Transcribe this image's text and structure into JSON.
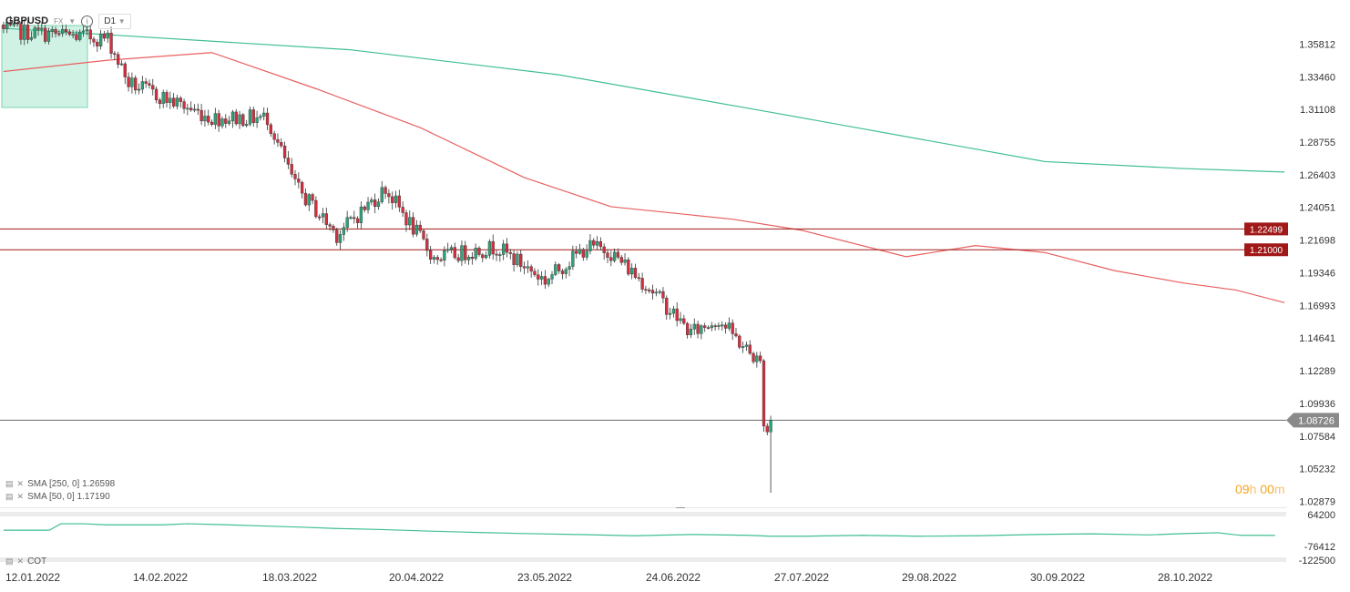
{
  "header": {
    "symbol": "GBPUSD",
    "market": "FX",
    "timeframe": "D1"
  },
  "legend": {
    "sma250": "SMA [250,  0]  1.26598",
    "sma50": "SMA [50,  0]  1.17190",
    "cot": "COT"
  },
  "countdown": {
    "hours": "09",
    "h": "h",
    "minutes": "00",
    "m": "m"
  },
  "colors": {
    "up": "#2fa37a",
    "down": "#d32f3f",
    "sma250": "#3fbf8f",
    "sma50": "#e86060",
    "level": "#a01818",
    "price_line": "#6e6e6e",
    "highlight": "#bfeedb"
  },
  "chart_data": {
    "type": "candlestick",
    "symbol": "GBPUSD",
    "timeframe": "D1",
    "x_tick_labels": [
      "12.01.2022",
      "14.02.2022",
      "18.03.2022",
      "20.04.2022",
      "23.05.2022",
      "24.06.2022",
      "27.07.2022",
      "29.08.2022",
      "30.09.2022",
      "28.10.2022"
    ],
    "y_tick_labels": [
      "1.35812",
      "1.33460",
      "1.31108",
      "1.28755",
      "1.26403",
      "1.24051",
      "1.21698",
      "1.19346",
      "1.16993",
      "1.14641",
      "1.12289",
      "1.09936",
      "1.07584",
      "1.05232",
      "1.02879"
    ],
    "ylim": [
      1.0252,
      1.3715
    ],
    "current_price": 1.08726,
    "current_price_label": "1.08726",
    "levels": [
      {
        "value": 1.22499,
        "label": "1.22499"
      },
      {
        "value": 1.21,
        "label": "1.21000"
      }
    ],
    "key_prices": [
      {
        "bar": 0,
        "close": 1.368
      },
      {
        "bar": 30,
        "close": 1.362
      },
      {
        "bar": 36,
        "close": 1.33
      },
      {
        "bar": 60,
        "close": 1.305
      },
      {
        "bar": 76,
        "close": 1.305
      },
      {
        "bar": 84,
        "close": 1.256
      },
      {
        "bar": 96,
        "close": 1.221
      },
      {
        "bar": 110,
        "close": 1.254
      },
      {
        "bar": 124,
        "close": 1.204
      },
      {
        "bar": 142,
        "close": 1.212
      },
      {
        "bar": 156,
        "close": 1.188
      },
      {
        "bar": 168,
        "close": 1.212
      },
      {
        "bar": 174,
        "close": 1.21
      },
      {
        "bar": 186,
        "close": 1.183
      },
      {
        "bar": 198,
        "close": 1.15
      },
      {
        "bar": 206,
        "close": 1.16
      },
      {
        "bar": 214,
        "close": 1.138
      },
      {
        "bar": 218,
        "close": 1.128
      },
      {
        "bar": 219,
        "close": 1.083
      },
      {
        "bar": 220,
        "close": 1.0788
      },
      {
        "bar": 221,
        "close": 1.08726,
        "low": 1.035
      }
    ],
    "series": [
      {
        "name": "SMA [250,  0]",
        "last": 1.26598,
        "points": [
          [
            0,
            1.3695
          ],
          [
            100,
            1.354
          ],
          [
            160,
            1.336
          ],
          [
            220,
            1.3095
          ],
          [
            300,
            1.2735
          ],
          [
            340,
            1.2685
          ],
          [
            369,
            1.26598
          ]
        ]
      },
      {
        "name": "SMA [50,  0]",
        "last": 1.1719,
        "points": [
          [
            0,
            1.3384
          ],
          [
            30,
            1.3465
          ],
          [
            60,
            1.352
          ],
          [
            90,
            1.326
          ],
          [
            120,
            1.298
          ],
          [
            150,
            1.262
          ],
          [
            175,
            1.241
          ],
          [
            210,
            1.232
          ],
          [
            230,
            1.224
          ],
          [
            260,
            1.205
          ],
          [
            280,
            1.213
          ],
          [
            300,
            1.208
          ],
          [
            320,
            1.195
          ],
          [
            340,
            1.186
          ],
          [
            355,
            1.181
          ],
          [
            369,
            1.1719
          ]
        ]
      }
    ],
    "cot": {
      "y_tick_labels": [
        "64200",
        "-76412",
        "-122500"
      ],
      "ylim": [
        -122500,
        64200
      ],
      "points": [
        [
          0,
          0
        ],
        [
          8,
          0
        ],
        [
          10,
          30000
        ],
        [
          14,
          30000
        ],
        [
          18,
          25000
        ],
        [
          28,
          25000
        ],
        [
          32,
          30000
        ],
        [
          38,
          26000
        ],
        [
          45,
          20000
        ],
        [
          52,
          14000
        ],
        [
          58,
          8000
        ],
        [
          66,
          3000
        ],
        [
          74,
          -4000
        ],
        [
          82,
          -10000
        ],
        [
          90,
          -15000
        ],
        [
          100,
          -20000
        ],
        [
          110,
          -26000
        ],
        [
          120,
          -20000
        ],
        [
          130,
          -24000
        ],
        [
          134,
          -28000
        ],
        [
          140,
          -28000
        ],
        [
          150,
          -24000
        ],
        [
          160,
          -28000
        ],
        [
          170,
          -26000
        ],
        [
          180,
          -20000
        ],
        [
          190,
          -17000
        ],
        [
          200,
          -22000
        ],
        [
          206,
          -16000
        ],
        [
          212,
          -12000
        ],
        [
          216,
          -24000
        ],
        [
          220,
          -24000
        ],
        [
          222,
          -24500
        ]
      ]
    }
  }
}
